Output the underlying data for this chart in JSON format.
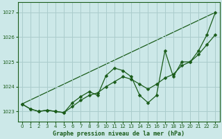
{
  "title": "Graphe pression niveau de la mer (hPa)",
  "background_color": "#cce8e8",
  "grid_color": "#aacccc",
  "line_color": "#1a5c1a",
  "xlim": [
    -0.5,
    23.5
  ],
  "ylim": [
    1022.6,
    1027.4
  ],
  "yticks": [
    1023,
    1024,
    1025,
    1026,
    1027
  ],
  "xticks": [
    0,
    1,
    2,
    3,
    4,
    5,
    6,
    7,
    8,
    9,
    10,
    11,
    12,
    13,
    14,
    15,
    16,
    17,
    18,
    19,
    20,
    21,
    22,
    23
  ],
  "series": {
    "line_wavy": {
      "x": [
        0,
        1,
        2,
        3,
        4,
        5,
        6,
        7,
        8,
        9,
        10,
        11,
        12,
        13,
        14,
        15,
        16,
        17,
        18,
        19,
        20,
        21,
        22,
        23
      ],
      "y": [
        1023.3,
        1023.1,
        1023.0,
        1023.05,
        1023.0,
        1022.95,
        1023.35,
        1023.6,
        1023.8,
        1023.65,
        1024.45,
        1024.75,
        1024.65,
        1024.4,
        1023.65,
        1023.35,
        1023.65,
        1025.45,
        1024.4,
        1025.0,
        1025.0,
        1025.45,
        1026.1,
        1027.0
      ]
    },
    "line_smooth": {
      "x": [
        0,
        1,
        2,
        3,
        4,
        5,
        6,
        7,
        8,
        9,
        10,
        11,
        12,
        13,
        14,
        15,
        16,
        17,
        18,
        19,
        20,
        21,
        22,
        23
      ],
      "y": [
        1023.3,
        1023.1,
        1023.0,
        1023.05,
        1023.0,
        1022.95,
        1023.2,
        1023.45,
        1023.65,
        1023.75,
        1024.0,
        1024.2,
        1024.4,
        1024.3,
        1024.1,
        1023.9,
        1024.1,
        1024.35,
        1024.5,
        1024.85,
        1025.0,
        1025.3,
        1025.7,
        1026.1
      ]
    },
    "line_trend": {
      "x": [
        0,
        23
      ],
      "y": [
        1023.3,
        1027.0
      ]
    }
  }
}
